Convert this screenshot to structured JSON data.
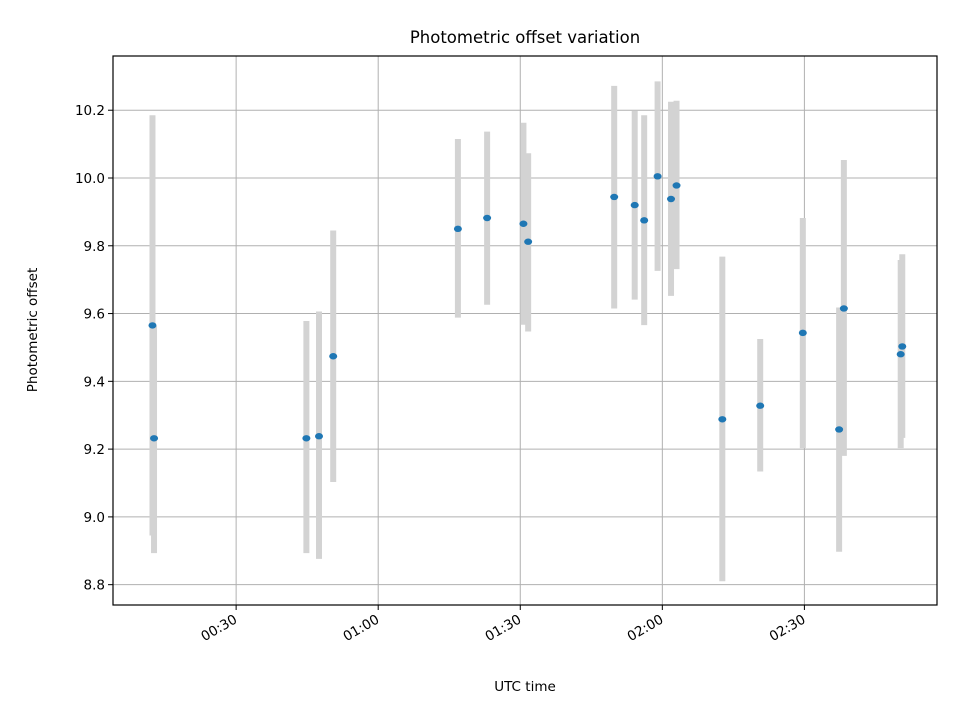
{
  "chart_data": {
    "type": "scatter",
    "title": "Photometric offset variation",
    "xlabel": "UTC time",
    "ylabel": "Photometric offset",
    "x_unit": "HH:MM UTC",
    "xlim": [
      "00:04",
      "02:58"
    ],
    "ylim": [
      8.74,
      10.36
    ],
    "x_ticks": [
      "00:30",
      "01:00",
      "01:30",
      "02:00",
      "02:30"
    ],
    "y_ticks": [
      "8.8",
      "9.0",
      "9.2",
      "9.4",
      "9.6",
      "9.8",
      "10.0",
      "10.2"
    ],
    "grid": true,
    "colors": {
      "point": "#1f77b4",
      "errorbar": "#d3d3d3",
      "grid": "#b0b0b0"
    },
    "points": [
      {
        "x": "00:12:20",
        "y": 9.565,
        "ylow": 8.945,
        "yhigh": 10.185
      },
      {
        "x": "00:12:40",
        "y": 9.232,
        "ylow": 8.893,
        "yhigh": 9.563
      },
      {
        "x": "00:44:50",
        "y": 9.232,
        "ylow": 8.893,
        "yhigh": 9.578
      },
      {
        "x": "00:47:30",
        "y": 9.238,
        "ylow": 8.876,
        "yhigh": 9.606
      },
      {
        "x": "00:50:30",
        "y": 9.474,
        "ylow": 9.103,
        "yhigh": 9.845
      },
      {
        "x": "01:16:50",
        "y": 9.85,
        "ylow": 9.588,
        "yhigh": 10.115
      },
      {
        "x": "01:23:00",
        "y": 9.882,
        "ylow": 9.626,
        "yhigh": 10.137
      },
      {
        "x": "01:30:40",
        "y": 9.865,
        "ylow": 9.567,
        "yhigh": 10.163
      },
      {
        "x": "01:31:40",
        "y": 9.812,
        "ylow": 9.547,
        "yhigh": 10.073
      },
      {
        "x": "01:49:50",
        "y": 9.944,
        "ylow": 9.615,
        "yhigh": 10.272
      },
      {
        "x": "01:54:10",
        "y": 9.92,
        "ylow": 9.641,
        "yhigh": 10.198
      },
      {
        "x": "01:56:10",
        "y": 9.875,
        "ylow": 9.566,
        "yhigh": 10.185
      },
      {
        "x": "01:59:00",
        "y": 10.005,
        "ylow": 9.726,
        "yhigh": 10.285
      },
      {
        "x": "02:01:50",
        "y": 9.938,
        "ylow": 9.652,
        "yhigh": 10.225
      },
      {
        "x": "02:03:00",
        "y": 9.978,
        "ylow": 9.731,
        "yhigh": 10.228
      },
      {
        "x": "02:12:40",
        "y": 9.288,
        "ylow": 8.81,
        "yhigh": 9.768
      },
      {
        "x": "02:20:40",
        "y": 9.328,
        "ylow": 9.134,
        "yhigh": 9.525
      },
      {
        "x": "02:29:40",
        "y": 9.543,
        "ylow": 9.203,
        "yhigh": 9.882
      },
      {
        "x": "02:37:20",
        "y": 9.258,
        "ylow": 8.897,
        "yhigh": 9.618
      },
      {
        "x": "02:38:20",
        "y": 9.615,
        "ylow": 9.18,
        "yhigh": 10.053
      },
      {
        "x": "02:50:20",
        "y": 9.48,
        "ylow": 9.203,
        "yhigh": 9.758
      },
      {
        "x": "02:50:40",
        "y": 9.503,
        "ylow": 9.233,
        "yhigh": 9.775
      }
    ]
  }
}
